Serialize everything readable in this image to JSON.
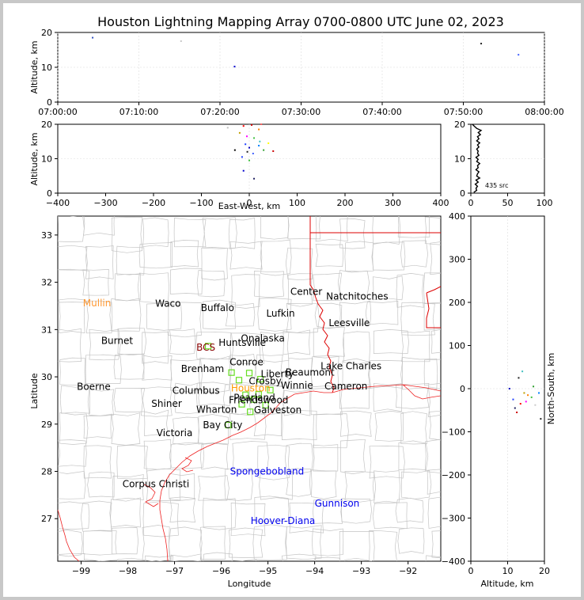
{
  "chart_data": [
    {
      "id": "time-altitude",
      "type": "scatter",
      "title": "Houston Lightning Mapping Array 0700-0800 UTC June 02, 2023",
      "ylabel": "Altitude, km",
      "xlabel": "",
      "xticks": [
        "07:00:00",
        "07:10:00",
        "07:20:00",
        "07:30:00",
        "07:40:00",
        "07:50:00",
        "08:00:00"
      ],
      "xlim": [
        0,
        60
      ],
      "ylim": [
        0,
        20
      ],
      "yticks": [
        0,
        10,
        20
      ],
      "points": [
        {
          "x": 4.3,
          "y": 18.5,
          "c": "#3050c0"
        },
        {
          "x": 21.8,
          "y": 10.2,
          "c": "#0000cc"
        },
        {
          "x": 52.2,
          "y": 16.8,
          "c": "#202020"
        },
        {
          "x": 56.8,
          "y": 13.6,
          "c": "#4060ff"
        },
        {
          "x": 15.2,
          "y": 17.5,
          "c": "#c8c8c8"
        }
      ]
    },
    {
      "id": "ew-altitude",
      "type": "scatter",
      "xlabel": "East-West, km",
      "ylabel": "Altitude, km",
      "xlim": [
        -400,
        400
      ],
      "ylim": [
        0,
        20
      ],
      "xticks": [
        "−400",
        "−300",
        "−200",
        "−100",
        "0",
        "100",
        "200",
        "300",
        "400"
      ],
      "yticks": [
        0,
        10,
        20
      ],
      "points": [
        {
          "x": -12,
          "y": 19.5,
          "c": "#ff0000"
        },
        {
          "x": 5,
          "y": 19.8,
          "c": "#cc0000"
        },
        {
          "x": 20,
          "y": 18.5,
          "c": "#ff8000"
        },
        {
          "x": -20,
          "y": 17.5,
          "c": "#c0a000"
        },
        {
          "x": 10,
          "y": 16.0,
          "c": "#40c040"
        },
        {
          "x": 22,
          "y": 15.0,
          "c": "#40c0c0"
        },
        {
          "x": -8,
          "y": 14.2,
          "c": "#2040ff"
        },
        {
          "x": 0,
          "y": 13.2,
          "c": "#0000c0"
        },
        {
          "x": -4,
          "y": 12.0,
          "c": "#202020"
        },
        {
          "x": 8,
          "y": 11.5,
          "c": "#4060ff"
        },
        {
          "x": 30,
          "y": 12.5,
          "c": "#30a030"
        },
        {
          "x": 50,
          "y": 12.2,
          "c": "#cc0000"
        },
        {
          "x": -15,
          "y": 10.5,
          "c": "#2040ff"
        },
        {
          "x": 0,
          "y": 9.5,
          "c": "#40c040"
        },
        {
          "x": -12,
          "y": 6.5,
          "c": "#0000cc"
        },
        {
          "x": 10,
          "y": 4.2,
          "c": "#202060"
        },
        {
          "x": -45,
          "y": 19.0,
          "c": "#c0c0c0"
        },
        {
          "x": 25,
          "y": 20.0,
          "c": "#ff6060"
        },
        {
          "x": 40,
          "y": 14.5,
          "c": "#ffff00"
        },
        {
          "x": -30,
          "y": 12.5,
          "c": "#000000"
        },
        {
          "x": 20,
          "y": 13.8,
          "c": "#0080ff"
        },
        {
          "x": -5,
          "y": 16.5,
          "c": "#ff00ff"
        }
      ]
    },
    {
      "id": "altitude-histogram",
      "type": "line",
      "xlim": [
        0,
        100
      ],
      "ylim": [
        0,
        20
      ],
      "xticks": [
        "0",
        "50",
        "100"
      ],
      "yticks": [
        0,
        10,
        20
      ],
      "annotation": "435 src",
      "profile": [
        [
          0.2,
          4
        ],
        [
          0.8,
          8
        ],
        [
          1.4,
          7
        ],
        [
          2.0,
          9
        ],
        [
          2.6,
          6
        ],
        [
          3.2,
          10
        ],
        [
          3.8,
          7
        ],
        [
          4.4,
          12
        ],
        [
          5.0,
          8
        ],
        [
          5.6,
          9
        ],
        [
          6.2,
          11
        ],
        [
          6.8,
          7
        ],
        [
          7.4,
          10
        ],
        [
          8.0,
          9
        ],
        [
          8.6,
          12
        ],
        [
          9.2,
          8
        ],
        [
          9.8,
          10
        ],
        [
          10.4,
          7
        ],
        [
          11.0,
          11
        ],
        [
          11.6,
          9
        ],
        [
          12.2,
          10
        ],
        [
          12.8,
          8
        ],
        [
          13.4,
          11
        ],
        [
          14.0,
          9
        ],
        [
          14.6,
          12
        ],
        [
          15.2,
          8
        ],
        [
          15.8,
          11
        ],
        [
          16.4,
          9
        ],
        [
          17.0,
          13
        ],
        [
          17.6,
          10
        ],
        [
          18.2,
          14
        ],
        [
          18.8,
          8
        ],
        [
          19.4,
          5
        ],
        [
          20.0,
          2
        ]
      ]
    },
    {
      "id": "plan-view-map",
      "type": "scatter",
      "xlabel": "Longitude",
      "ylabel": "Latitude",
      "xlim": [
        -99.5,
        -91.3
      ],
      "ylim": [
        26.1,
        33.4
      ],
      "xticks": [
        -99,
        -98,
        -97,
        -96,
        -95,
        -94,
        -93,
        -92
      ],
      "yticks": [
        27,
        28,
        29,
        30,
        31,
        32,
        33
      ],
      "cities": [
        {
          "name": "Mullin",
          "lon": -98.66,
          "lat": 31.56,
          "c": "#ff9933"
        },
        {
          "name": "Waco",
          "lon": -97.14,
          "lat": 31.55,
          "c": "#000000"
        },
        {
          "name": "Buffalo",
          "lon": -96.08,
          "lat": 31.46,
          "c": "#000000"
        },
        {
          "name": "Center",
          "lon": -94.18,
          "lat": 31.8,
          "c": "#000000"
        },
        {
          "name": "Natchitoches",
          "lon": -93.09,
          "lat": 31.7,
          "c": "#000000"
        },
        {
          "name": "Lufkin",
          "lon": -94.73,
          "lat": 31.34,
          "c": "#000000"
        },
        {
          "name": "Leesville",
          "lon": -93.26,
          "lat": 31.14,
          "c": "#000000"
        },
        {
          "name": "Burnet",
          "lon": -98.23,
          "lat": 30.76,
          "c": "#000000"
        },
        {
          "name": "BCS",
          "lon": -96.33,
          "lat": 30.62,
          "c": "#880000"
        },
        {
          "name": "Huntsville",
          "lon": -95.55,
          "lat": 30.72,
          "c": "#000000"
        },
        {
          "name": "Onalaska",
          "lon": -95.11,
          "lat": 30.81,
          "c": "#000000"
        },
        {
          "name": "Conroe",
          "lon": -95.46,
          "lat": 30.31,
          "c": "#000000"
        },
        {
          "name": "Lake Charles",
          "lon": -93.22,
          "lat": 30.23,
          "c": "#000000"
        },
        {
          "name": "Brenham",
          "lon": -96.4,
          "lat": 30.17,
          "c": "#000000"
        },
        {
          "name": "Liberty",
          "lon": -94.8,
          "lat": 30.06,
          "c": "#000000"
        },
        {
          "name": "Beaumont",
          "lon": -94.1,
          "lat": 30.09,
          "c": "#000000"
        },
        {
          "name": "Boerne",
          "lon": -98.73,
          "lat": 29.79,
          "c": "#000000"
        },
        {
          "name": "Winnie",
          "lon": -94.38,
          "lat": 29.82,
          "c": "#000000"
        },
        {
          "name": "Cameron",
          "lon": -93.33,
          "lat": 29.8,
          "c": "#000000"
        },
        {
          "name": "Columbus",
          "lon": -96.54,
          "lat": 29.71,
          "c": "#000000"
        },
        {
          "name": "Houston",
          "lon": -95.37,
          "lat": 29.76,
          "c": "#ff9900"
        },
        {
          "name": "Shiner",
          "lon": -97.17,
          "lat": 29.43,
          "c": "#000000"
        },
        {
          "name": "Galveston",
          "lon": -94.79,
          "lat": 29.3,
          "c": "#000000"
        },
        {
          "name": "Wharton",
          "lon": -96.1,
          "lat": 29.31,
          "c": "#000000"
        },
        {
          "name": "Bay City",
          "lon": -95.97,
          "lat": 28.98,
          "c": "#000000"
        },
        {
          "name": "Victoria",
          "lon": -97.0,
          "lat": 28.81,
          "c": "#000000"
        },
        {
          "name": "Spongebobland",
          "lon": -95.02,
          "lat": 28.0,
          "c": "#0000ee"
        },
        {
          "name": "Corpus Christi",
          "lon": -97.4,
          "lat": 27.73,
          "c": "#000000"
        },
        {
          "name": "Gunnison",
          "lon": -93.52,
          "lat": 27.32,
          "c": "#0000ee"
        },
        {
          "name": "Hoover-Diana",
          "lon": -94.68,
          "lat": 26.95,
          "c": "#0000ee"
        },
        {
          "name": "Friendswood",
          "lon": -95.2,
          "lat": 29.51,
          "c": "#000000"
        },
        {
          "name": "Pearland",
          "lon": -95.29,
          "lat": 29.56,
          "c": "#000000"
        },
        {
          "name": "Crosby",
          "lon": -95.06,
          "lat": 29.91,
          "c": "#000000"
        }
      ],
      "stations": [
        {
          "lon": -96.28,
          "lat": 30.65
        },
        {
          "lon": -95.78,
          "lat": 30.09
        },
        {
          "lon": -95.62,
          "lat": 29.93
        },
        {
          "lon": -95.4,
          "lat": 30.08
        },
        {
          "lon": -95.16,
          "lat": 29.95
        },
        {
          "lon": -95.48,
          "lat": 29.62
        },
        {
          "lon": -95.3,
          "lat": 29.52
        },
        {
          "lon": -95.38,
          "lat": 29.26
        },
        {
          "lon": -95.85,
          "lat": 28.98
        },
        {
          "lon": -95.05,
          "lat": 29.4
        },
        {
          "lon": -95.56,
          "lat": 29.42
        },
        {
          "lon": -95.2,
          "lat": 29.63
        },
        {
          "lon": -94.95,
          "lat": 29.72
        }
      ]
    },
    {
      "id": "altitude-ns",
      "type": "scatter",
      "xlabel": "Altitude, km",
      "ylabel": "North-South, km",
      "xlim": [
        0,
        20
      ],
      "ylim": [
        -400,
        400
      ],
      "xticks": [
        "0",
        "10",
        "20"
      ],
      "yticks": [
        "−400",
        "−300",
        "−200",
        "−100",
        "0",
        "100",
        "200",
        "300",
        "400"
      ],
      "points": [
        {
          "x": 12.5,
          "y": -55,
          "c": "#cc0000"
        },
        {
          "x": 13.5,
          "y": -35,
          "c": "#ff0000"
        },
        {
          "x": 14.5,
          "y": -10,
          "c": "#c0a000"
        },
        {
          "x": 15.5,
          "y": -15,
          "c": "#ff8000"
        },
        {
          "x": 11.5,
          "y": -25,
          "c": "#2040ff"
        },
        {
          "x": 10.5,
          "y": 0,
          "c": "#0000c0"
        },
        {
          "x": 16.5,
          "y": -20,
          "c": "#40c040"
        },
        {
          "x": 17.0,
          "y": 5,
          "c": "#30a030"
        },
        {
          "x": 18.5,
          "y": -10,
          "c": "#0080ff"
        },
        {
          "x": 13.0,
          "y": 25,
          "c": "#202020"
        },
        {
          "x": 14.0,
          "y": 40,
          "c": "#40c0c0"
        },
        {
          "x": 12.0,
          "y": -45,
          "c": "#202060"
        },
        {
          "x": 19.0,
          "y": -70,
          "c": "#202020"
        },
        {
          "x": 15.0,
          "y": -30,
          "c": "#ff00ff"
        },
        {
          "x": 17.5,
          "y": -38,
          "c": "#cccccc"
        }
      ]
    }
  ]
}
